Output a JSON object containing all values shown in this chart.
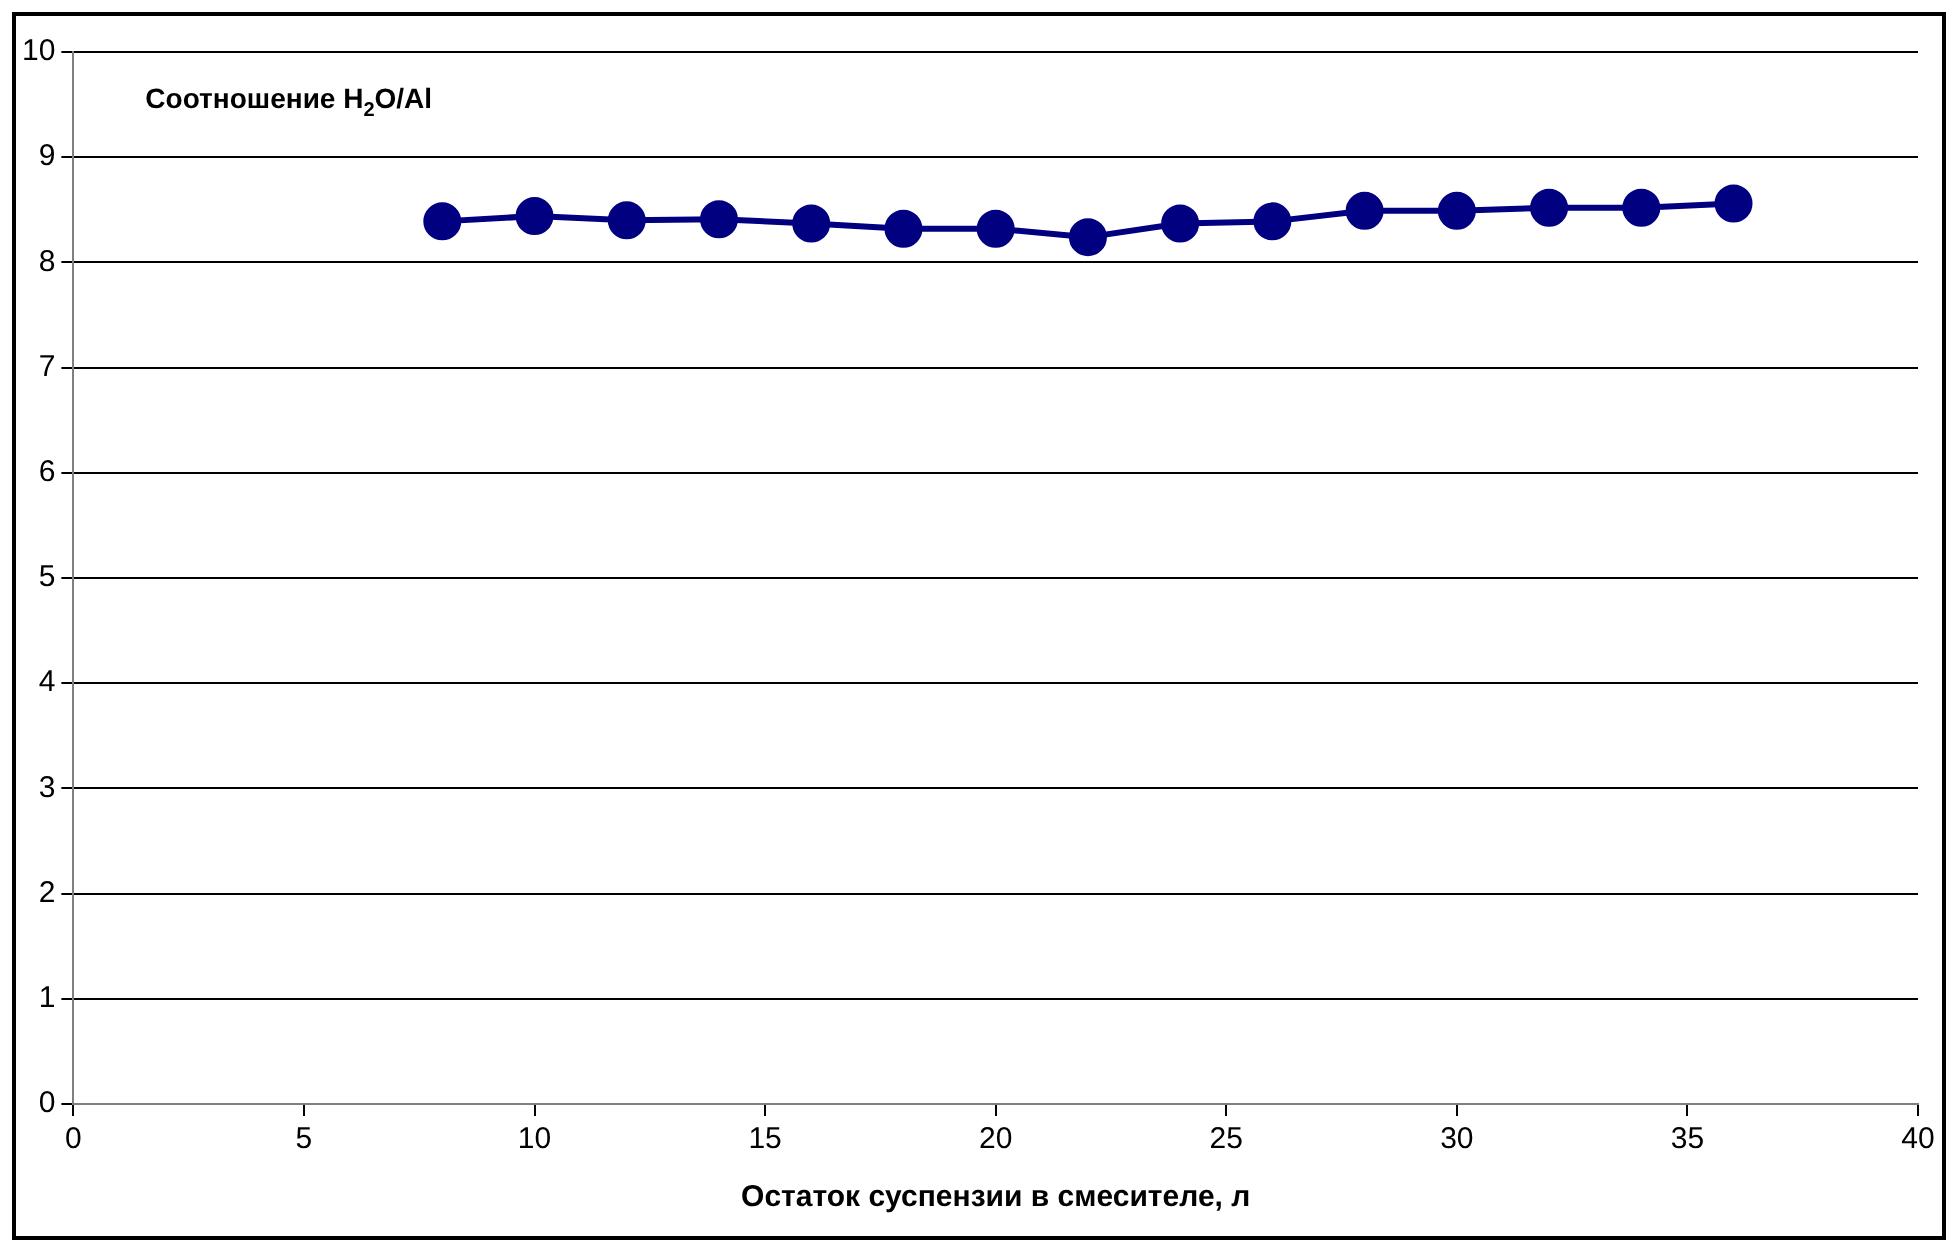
{
  "chart_data": {
    "type": "line",
    "title": "Соотношение H$_{2}$O/Al",
    "xlabel": "Остаток суспензии в смесителе, л",
    "x": [
      8,
      10,
      12,
      14,
      16,
      18,
      20,
      22,
      24,
      26,
      28,
      30,
      32,
      34,
      36
    ],
    "series": [
      {
        "color": "#000080",
        "values": [
          8.39,
          8.44,
          8.4,
          8.41,
          8.37,
          8.32,
          8.32,
          8.24,
          8.37,
          8.39,
          8.49,
          8.49,
          8.52,
          8.52,
          8.56
        ]
      }
    ],
    "xlim": [
      0,
      40
    ],
    "xticks": [
      0,
      5,
      10,
      15,
      20,
      25,
      30,
      35,
      40
    ],
    "ylim": [
      0,
      10
    ],
    "yticks": [
      0,
      1,
      2,
      3,
      4,
      5,
      6,
      7,
      8,
      9,
      10
    ],
    "grid": "y",
    "legend": false,
    "marker": "circle",
    "line_style": "solid"
  }
}
